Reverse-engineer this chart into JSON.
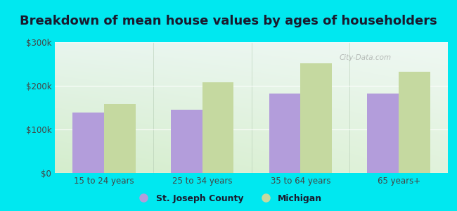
{
  "title": "Breakdown of mean house values by ages of householders",
  "categories": [
    "15 to 24 years",
    "25 to 34 years",
    "35 to 64 years",
    "65 years+"
  ],
  "st_joseph": [
    138000,
    145000,
    183000,
    182000
  ],
  "michigan": [
    158000,
    208000,
    252000,
    233000
  ],
  "bar_color_sj": "#b39ddb",
  "bar_color_mi": "#c5d9a0",
  "background_outer": "#00e8f0",
  "ylim": [
    0,
    300000
  ],
  "yticks": [
    0,
    100000,
    200000,
    300000
  ],
  "ytick_labels": [
    "$0",
    "$100k",
    "$200k",
    "$300k"
  ],
  "legend_sj": "St. Joseph County",
  "legend_mi": "Michigan",
  "watermark": "City-Data.com",
  "title_fontsize": 13,
  "tick_fontsize": 8.5,
  "legend_fontsize": 9
}
